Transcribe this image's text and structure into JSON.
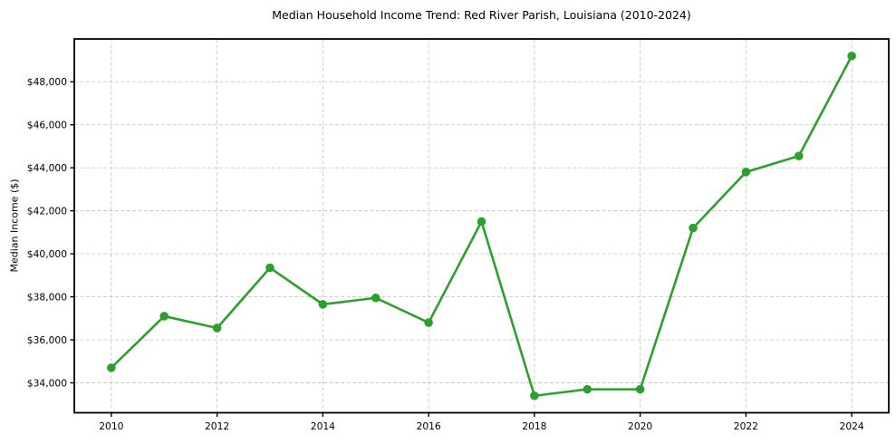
{
  "chart_data": {
    "type": "line",
    "title": "Median Household Income Trend: Red River Parish, Louisiana (2010-2024)",
    "xlabel": "",
    "ylabel": "Median Income ($)",
    "x": [
      2010,
      2011,
      2012,
      2013,
      2014,
      2015,
      2016,
      2017,
      2018,
      2019,
      2020,
      2021,
      2022,
      2023,
      2024
    ],
    "values": [
      34700,
      37100,
      36550,
      39350,
      37650,
      37950,
      36800,
      41500,
      33400,
      33700,
      33700,
      41200,
      43800,
      44550,
      49200
    ],
    "x_ticks": [
      {
        "v": 2010,
        "label": "2010"
      },
      {
        "v": 2012,
        "label": "2012"
      },
      {
        "v": 2014,
        "label": "2014"
      },
      {
        "v": 2016,
        "label": "2016"
      },
      {
        "v": 2018,
        "label": "2018"
      },
      {
        "v": 2020,
        "label": "2020"
      },
      {
        "v": 2022,
        "label": "2022"
      },
      {
        "v": 2024,
        "label": "2024"
      }
    ],
    "y_ticks": [
      {
        "v": 34000,
        "label": "$34,000"
      },
      {
        "v": 36000,
        "label": "$36,000"
      },
      {
        "v": 38000,
        "label": "$38,000"
      },
      {
        "v": 40000,
        "label": "$40,000"
      },
      {
        "v": 42000,
        "label": "$42,000"
      },
      {
        "v": 44000,
        "label": "$44,000"
      },
      {
        "v": 46000,
        "label": "$46,000"
      },
      {
        "v": 48000,
        "label": "$48,000"
      }
    ],
    "xlim": [
      2009.3,
      2024.7
    ],
    "ylim": [
      32610,
      49990
    ],
    "grid": true,
    "grid_style": "dashed",
    "legend": "none",
    "colors": {
      "line": "#2ca02c",
      "marker": "#2ca02c",
      "grid": "#c8c8c8",
      "spine": "#000000",
      "text": "#000000",
      "background": "#ffffff"
    }
  }
}
